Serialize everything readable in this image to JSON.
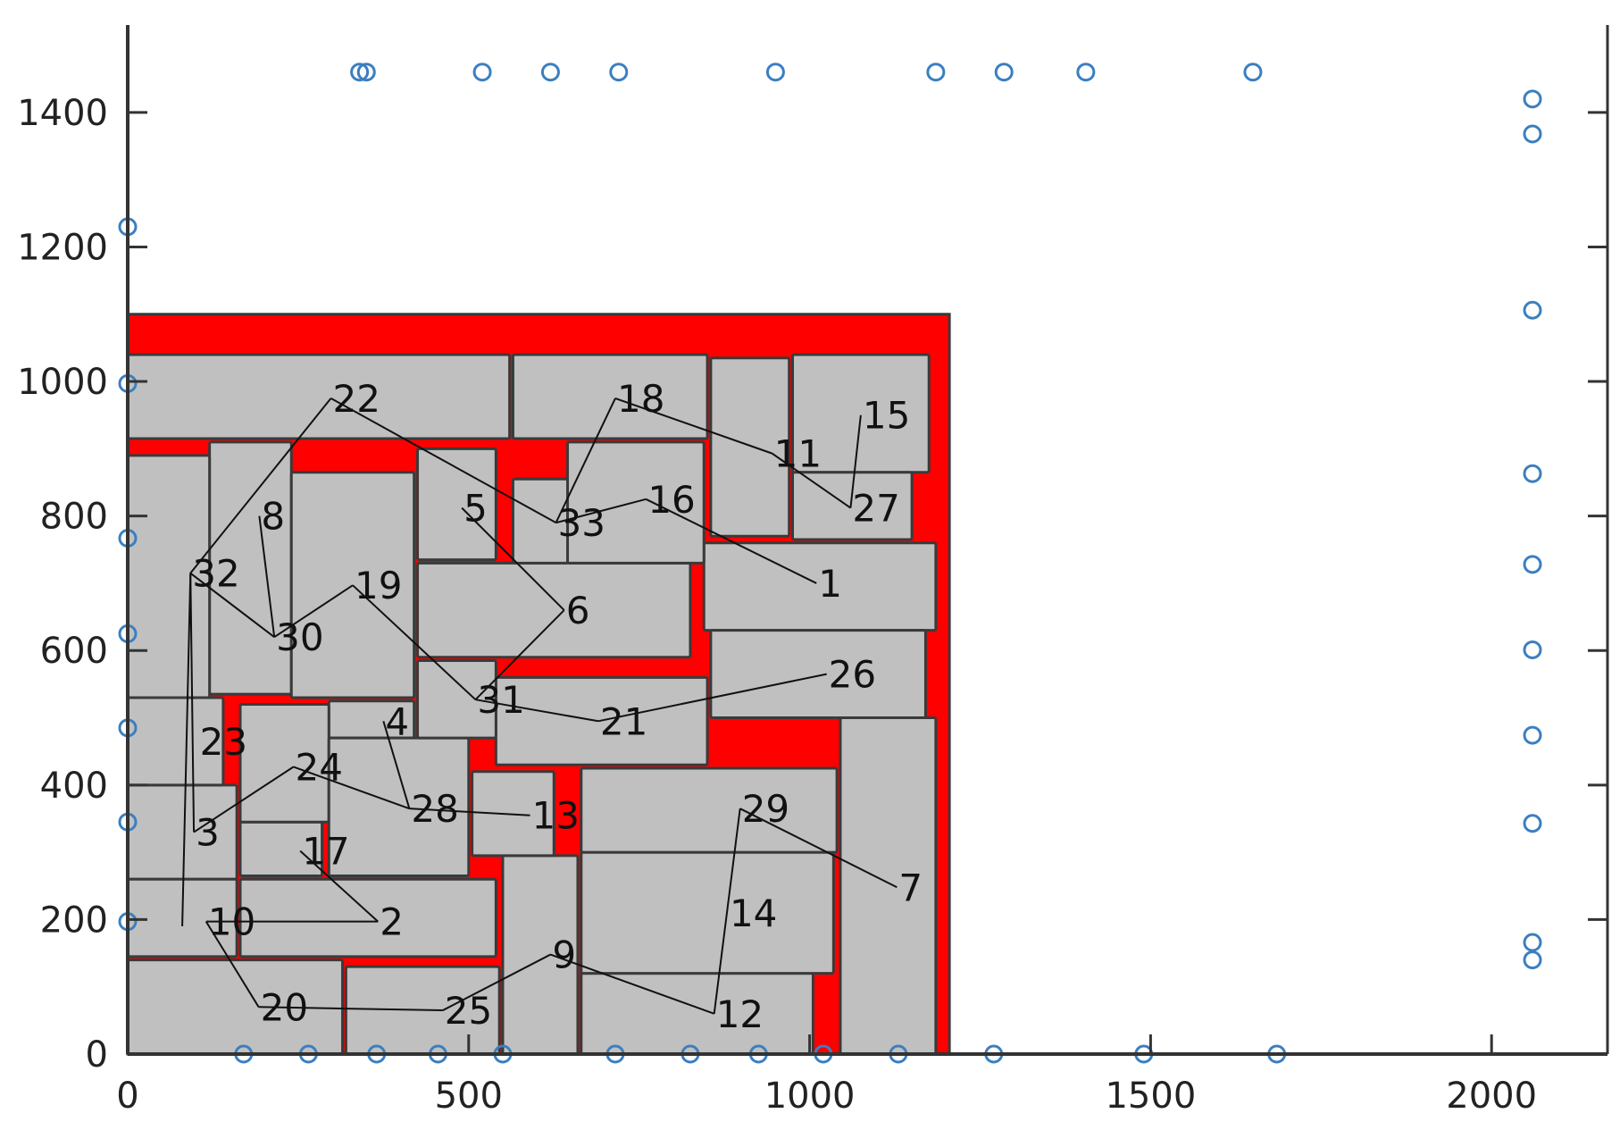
{
  "chart_data": {
    "type": "scatter",
    "title": "",
    "xlabel": "",
    "ylabel": "",
    "xlim": [
      0,
      2170
    ],
    "ylim": [
      0,
      1530
    ],
    "xticks": [
      0,
      500,
      1000,
      1500,
      2000
    ],
    "yticks": [
      0,
      200,
      400,
      600,
      800,
      1000,
      1200,
      1400
    ],
    "grid": false,
    "colors": {
      "outline_fill": "#ff0000",
      "block_fill": "#c0c0c0",
      "block_edge": "#3a3a3a",
      "link": "#111111",
      "marker": "#3b7fc0",
      "axis": "#333333"
    },
    "outline": {
      "x0": 0,
      "y0": 0,
      "x1": 1205,
      "y1": 1100
    },
    "blocks": [
      {
        "label": "1",
        "x0": 845,
        "y0": 630,
        "x1": 1185,
        "y1": 760,
        "lx": 1010,
        "ly": 700
      },
      {
        "label": "2",
        "x0": 165,
        "y0": 145,
        "x1": 540,
        "y1": 260,
        "lx": 367,
        "ly": 197
      },
      {
        "label": "3",
        "x0": 0,
        "y0": 260,
        "x1": 160,
        "y1": 400,
        "lx": 97,
        "ly": 330
      },
      {
        "label": "4",
        "x0": 295,
        "y0": 470,
        "x1": 420,
        "y1": 525,
        "lx": 375,
        "ly": 495
      },
      {
        "label": "5",
        "x0": 425,
        "y0": 735,
        "x1": 540,
        "y1": 900,
        "lx": 490,
        "ly": 812
      },
      {
        "label": "6",
        "x0": 425,
        "y0": 590,
        "x1": 825,
        "y1": 730,
        "lx": 640,
        "ly": 660
      },
      {
        "label": "7",
        "x0": 1045,
        "y0": 0,
        "x1": 1185,
        "y1": 500,
        "lx": 1128,
        "ly": 248
      },
      {
        "label": "8",
        "x0": 120,
        "y0": 535,
        "x1": 240,
        "y1": 910,
        "lx": 193,
        "ly": 800
      },
      {
        "label": "9",
        "x0": 550,
        "y0": 0,
        "x1": 660,
        "y1": 295,
        "lx": 620,
        "ly": 148
      },
      {
        "label": "10",
        "x0": 0,
        "y0": 145,
        "x1": 160,
        "y1": 260,
        "lx": 115,
        "ly": 197
      },
      {
        "label": "11",
        "x0": 855,
        "y0": 770,
        "x1": 970,
        "y1": 1035,
        "lx": 945,
        "ly": 893
      },
      {
        "label": "12",
        "x0": 665,
        "y0": 0,
        "x1": 1005,
        "y1": 120,
        "lx": 860,
        "ly": 60
      },
      {
        "label": "13",
        "x0": 505,
        "y0": 295,
        "x1": 625,
        "y1": 420,
        "lx": 590,
        "ly": 355
      },
      {
        "label": "14",
        "x0": 665,
        "y0": 120,
        "x1": 1035,
        "y1": 300,
        "lx": 880,
        "ly": 210
      },
      {
        "label": "15",
        "x0": 975,
        "y0": 865,
        "x1": 1175,
        "y1": 1040,
        "lx": 1075,
        "ly": 950
      },
      {
        "label": "16",
        "x0": 645,
        "y0": 730,
        "x1": 845,
        "y1": 910,
        "lx": 760,
        "ly": 825
      },
      {
        "label": "17",
        "x0": 165,
        "y0": 265,
        "x1": 285,
        "y1": 345,
        "lx": 253,
        "ly": 302
      },
      {
        "label": "18",
        "x0": 565,
        "y0": 915,
        "x1": 850,
        "y1": 1040,
        "lx": 715,
        "ly": 975
      },
      {
        "label": "19",
        "x0": 240,
        "y0": 530,
        "x1": 420,
        "y1": 865,
        "lx": 330,
        "ly": 697
      },
      {
        "label": "20",
        "x0": 0,
        "y0": 0,
        "x1": 315,
        "y1": 140,
        "lx": 192,
        "ly": 70
      },
      {
        "label": "21",
        "x0": 540,
        "y0": 430,
        "x1": 850,
        "y1": 560,
        "lx": 690,
        "ly": 495
      },
      {
        "label": "22",
        "x0": 0,
        "y0": 915,
        "x1": 560,
        "y1": 1040,
        "lx": 298,
        "ly": 975
      },
      {
        "label": "23",
        "x0": 0,
        "y0": 400,
        "x1": 140,
        "y1": 530,
        "lx": 103,
        "ly": 465
      },
      {
        "label": "24",
        "x0": 165,
        "y0": 345,
        "x1": 295,
        "y1": 520,
        "lx": 243,
        "ly": 427
      },
      {
        "label": "25",
        "x0": 320,
        "y0": 0,
        "x1": 545,
        "y1": 130,
        "lx": 462,
        "ly": 65
      },
      {
        "label": "26",
        "x0": 855,
        "y0": 500,
        "x1": 1170,
        "y1": 630,
        "lx": 1025,
        "ly": 565
      },
      {
        "label": "27",
        "x0": 975,
        "y0": 765,
        "x1": 1150,
        "y1": 865,
        "lx": 1060,
        "ly": 812
      },
      {
        "label": "28",
        "x0": 295,
        "y0": 265,
        "x1": 500,
        "y1": 470,
        "lx": 413,
        "ly": 365
      },
      {
        "label": "29",
        "x0": 665,
        "y0": 300,
        "x1": 1040,
        "y1": 425,
        "lx": 898,
        "ly": 365
      },
      {
        "label": "30",
        "x0": 240,
        "y0": 530,
        "x1": 240,
        "y1": 530,
        "lx": 215,
        "ly": 620
      },
      {
        "label": "31",
        "x0": 425,
        "y0": 470,
        "x1": 540,
        "y1": 585,
        "lx": 510,
        "ly": 527
      },
      {
        "label": "32",
        "x0": 0,
        "y0": 530,
        "x1": 120,
        "y1": 890,
        "lx": 92,
        "ly": 715
      },
      {
        "label": "33",
        "x0": 565,
        "y0": 730,
        "x1": 645,
        "y1": 855,
        "lx": 628,
        "ly": 790
      }
    ],
    "links": [
      [
        "22",
        "32"
      ],
      [
        "22",
        "33"
      ],
      [
        "18",
        "33"
      ],
      [
        "18",
        "11"
      ],
      [
        "11",
        "27"
      ],
      [
        "15",
        "27"
      ],
      [
        "33",
        "16"
      ],
      [
        "16",
        "1"
      ],
      [
        "5",
        "6"
      ],
      [
        "6",
        "31"
      ],
      [
        "31",
        "19"
      ],
      [
        "19",
        "30"
      ],
      [
        "30",
        "8"
      ],
      [
        "30",
        "32"
      ],
      [
        "32",
        "32b"
      ],
      [
        "31",
        "21"
      ],
      [
        "21",
        "26"
      ],
      [
        "4",
        "28"
      ],
      [
        "24",
        "28"
      ],
      [
        "28",
        "13"
      ],
      [
        "24",
        "3"
      ],
      [
        "17",
        "2"
      ],
      [
        "2",
        "10"
      ],
      [
        "10",
        "20"
      ],
      [
        "20",
        "25"
      ],
      [
        "25",
        "9"
      ],
      [
        "9",
        "12"
      ],
      [
        "12",
        "29"
      ],
      [
        "29",
        "7"
      ],
      [
        "3",
        "32"
      ]
    ],
    "io_pins": [
      [
        340,
        1460
      ],
      [
        350,
        1460
      ],
      [
        520,
        1460
      ],
      [
        620,
        1460
      ],
      [
        720,
        1460
      ],
      [
        950,
        1460
      ],
      [
        1185,
        1460
      ],
      [
        1285,
        1460
      ],
      [
        1405,
        1460
      ],
      [
        1650,
        1460
      ],
      [
        0,
        1230
      ],
      [
        0,
        997
      ],
      [
        0,
        767
      ],
      [
        0,
        625
      ],
      [
        0,
        485
      ],
      [
        0,
        345
      ],
      [
        0,
        197
      ],
      [
        2060,
        1420
      ],
      [
        2060,
        1368
      ],
      [
        2060,
        1106
      ],
      [
        2060,
        863
      ],
      [
        2060,
        728
      ],
      [
        2060,
        601
      ],
      [
        2060,
        474
      ],
      [
        2060,
        343
      ],
      [
        2060,
        166
      ],
      [
        2060,
        140
      ],
      [
        170,
        0
      ],
      [
        265,
        0
      ],
      [
        365,
        0
      ],
      [
        455,
        0
      ],
      [
        550,
        0
      ],
      [
        715,
        0
      ],
      [
        825,
        0
      ],
      [
        925,
        0
      ],
      [
        1020,
        0
      ],
      [
        1130,
        0
      ],
      [
        1270,
        0
      ],
      [
        1490,
        0
      ],
      [
        1685,
        0
      ]
    ]
  }
}
